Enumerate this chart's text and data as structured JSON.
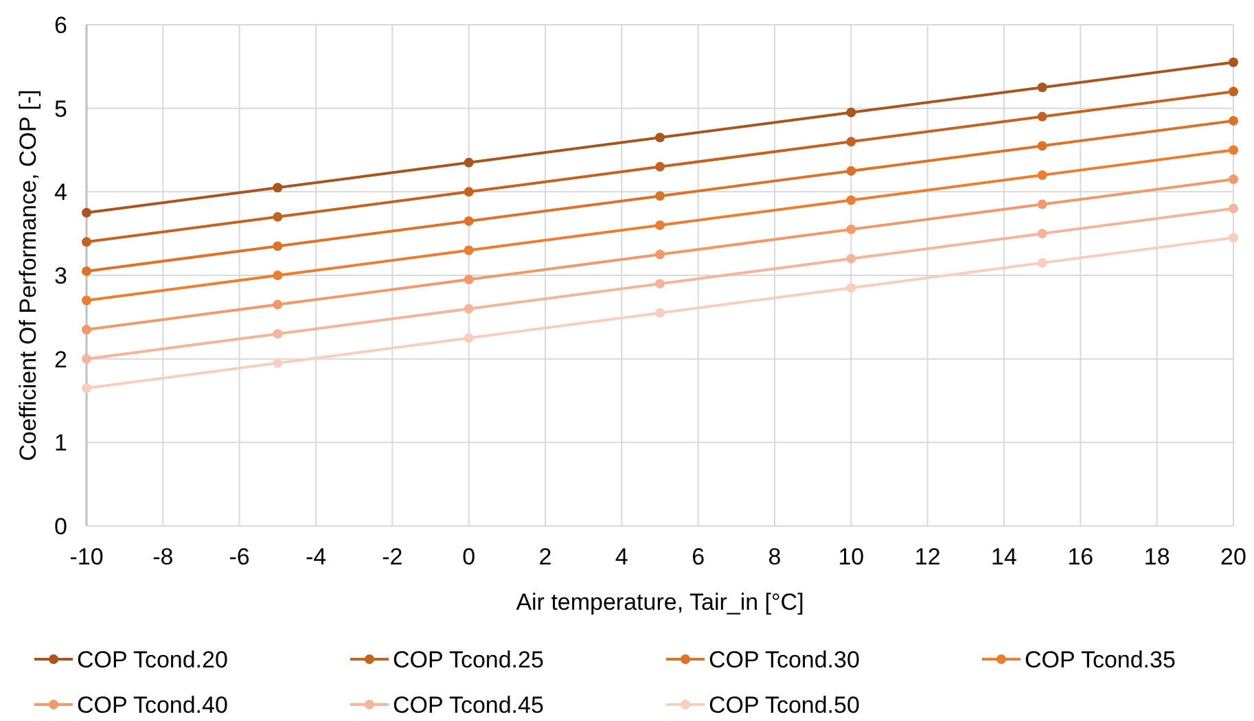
{
  "chart_data": {
    "type": "line",
    "xlabel": "Air temperature, Tair_in [°C]",
    "ylabel": "Coefficient Of Performance, COP [-]",
    "x": [
      -10,
      -5,
      0,
      5,
      10,
      15,
      20
    ],
    "xlim": [
      -10,
      20
    ],
    "xticks": [
      -10,
      -8,
      -6,
      -4,
      -2,
      0,
      2,
      4,
      6,
      8,
      10,
      12,
      14,
      16,
      18,
      20
    ],
    "ylim": [
      0,
      6
    ],
    "yticks": [
      0,
      1,
      2,
      3,
      4,
      5,
      6
    ],
    "grid": true,
    "legend": "bottom",
    "marker": "circle",
    "line_style": "solid",
    "series": [
      {
        "name": "COP Tcond.20",
        "color": "#a8561e",
        "values": [
          3.75,
          4.05,
          4.35,
          4.65,
          4.95,
          5.25,
          5.55
        ]
      },
      {
        "name": "COP Tcond.25",
        "color": "#c4621f",
        "values": [
          3.4,
          3.7,
          4.0,
          4.3,
          4.6,
          4.9,
          5.2
        ]
      },
      {
        "name": "COP Tcond.30",
        "color": "#dd7229",
        "values": [
          3.05,
          3.35,
          3.65,
          3.95,
          4.25,
          4.55,
          4.85
        ]
      },
      {
        "name": "COP Tcond.35",
        "color": "#ed7d31",
        "values": [
          2.7,
          3.0,
          3.3,
          3.6,
          3.9,
          4.2,
          4.5
        ]
      },
      {
        "name": "COP Tcond.40",
        "color": "#f09a6c",
        "values": [
          2.35,
          2.65,
          2.95,
          3.25,
          3.55,
          3.85,
          4.15
        ]
      },
      {
        "name": "COP Tcond.45",
        "color": "#f4b59a",
        "values": [
          2.0,
          2.3,
          2.6,
          2.9,
          3.2,
          3.5,
          3.8
        ]
      },
      {
        "name": "COP Tcond.50",
        "color": "#f8cfbf",
        "values": [
          1.65,
          1.95,
          2.25,
          2.55,
          2.85,
          3.15,
          3.45
        ]
      }
    ]
  }
}
